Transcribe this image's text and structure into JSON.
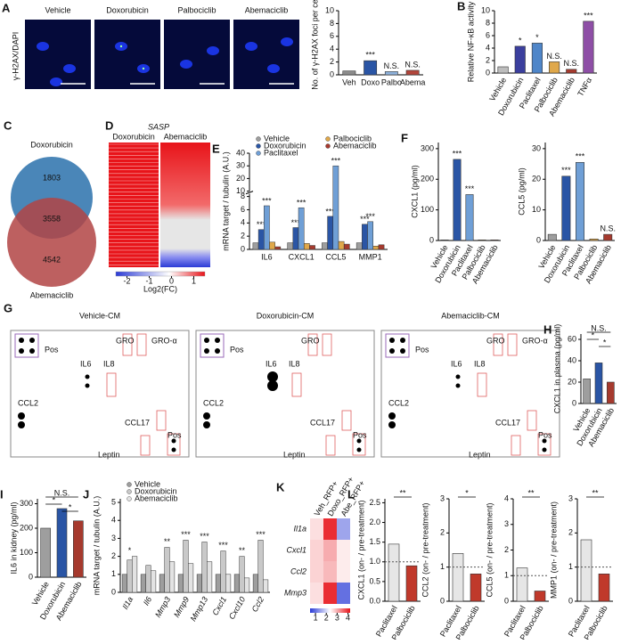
{
  "chart_data": [
    {
      "panel": "A",
      "type": "image",
      "channel_label": "γ-H2AX/DAPI",
      "titles": [
        "Vehicle",
        "Doxorubicin",
        "Palbociclib",
        "Abemaciclib"
      ]
    },
    {
      "type": "bar",
      "ylabel": "No. of γ-H2AX foci per cell",
      "categories": [
        "Veh",
        "Doxo",
        "Palbo",
        "Abema"
      ],
      "values": [
        0.6,
        2.2,
        0.5,
        0.7
      ],
      "colors": [
        "#8c8c8c",
        "#2a55a5",
        "#8fb3dd",
        "#b2453b"
      ],
      "ylim": [
        0,
        10
      ],
      "yticks": [
        0,
        2,
        4,
        6,
        8,
        10
      ],
      "annotations": [
        null,
        "***",
        "N.S.",
        "N.S."
      ]
    },
    {
      "panel": "B",
      "type": "bar",
      "ylabel": "Relative NF-κB activity",
      "categories": [
        "Vehicle",
        "Doxorubicin",
        "Paclitaxel",
        "Palbociclib",
        "Abemaciclib",
        "TNFα"
      ],
      "values": [
        1,
        4.3,
        4.8,
        1.8,
        0.6,
        8.3
      ],
      "colors": [
        "#bdbdbd",
        "#3b3f9e",
        "#4f86c9",
        "#e0a84a",
        "#a63a2e",
        "#8e4fa6"
      ],
      "ylim": [
        0,
        10
      ],
      "yticks": [
        0,
        2,
        4,
        6,
        8,
        10
      ],
      "annotations": [
        null,
        "*",
        "*",
        "N.S.",
        "N.S.",
        "***"
      ]
    },
    {
      "panel": "C",
      "type": "venn",
      "sets": [
        "Doxorubicin",
        "Abemaciclib"
      ],
      "counts": [
        1803,
        3558,
        4542
      ]
    },
    {
      "panel": "D",
      "type": "heatmap-image",
      "title": "SASP",
      "columns": [
        "Doxorubicin",
        "Abemaciclib"
      ],
      "colorbar_lim": [
        -2.5,
        1.5
      ],
      "colorbar_ticks": [
        -2,
        -1,
        0,
        1
      ],
      "colorbar_label": "Log2(FC)"
    },
    {
      "panel": "E",
      "type": "bar",
      "ylabel": "mRNA target / tubulin (A.U.)",
      "categories": [
        "IL6",
        "CXCL1",
        "CCL5",
        "MMP1"
      ],
      "series": [
        {
          "name": "Vehicle",
          "color": "#9e9e9e",
          "values": [
            1,
            1,
            1,
            1
          ]
        },
        {
          "name": "Doxorubicin",
          "color": "#2a55a5",
          "values": [
            3.0,
            3.3,
            5.0,
            3.8
          ],
          "annotations": [
            "***",
            "***",
            "***",
            "***"
          ]
        },
        {
          "name": "Paclitaxel",
          "color": "#6f9fd6",
          "values": [
            6.6,
            6.3,
            30,
            4.2
          ],
          "annotations": [
            "***",
            "***",
            "***",
            "***"
          ]
        },
        {
          "name": "Palbociclib",
          "color": "#e0a84a",
          "values": [
            1.1,
            0.9,
            1.2,
            0.5
          ]
        },
        {
          "name": "Abemaciclib",
          "color": "#a63a2e",
          "values": [
            0.4,
            0.6,
            0.8,
            0.7
          ]
        }
      ],
      "ylim": [
        0,
        40
      ],
      "ybreak": [
        8,
        10
      ],
      "yticks": [
        0,
        2,
        4,
        6,
        8,
        10,
        20,
        30,
        40
      ]
    },
    {
      "panel": "F",
      "type": "bar",
      "ylabel": "CXCL1 (pg/ml)",
      "categories": [
        "Vehicle",
        "Doxorubicin",
        "Paclitaxel",
        "Palbociclib",
        "Abemaciclib"
      ],
      "values": [
        2,
        265,
        150,
        2,
        2
      ],
      "colors": [
        "#9e9e9e",
        "#2a55a5",
        "#6f9fd6",
        "#e0a84a",
        "#a63a2e"
      ],
      "ylim": [
        0,
        320
      ],
      "yticks": [
        0,
        100,
        200,
        300
      ],
      "annotations": [
        null,
        "***",
        "***",
        null,
        null
      ]
    },
    {
      "type": "bar",
      "ylabel": "CCL5 (pg/ml)",
      "categories": [
        "Vehicle",
        "Doxorubicin",
        "Paclitaxel",
        "Palbociclib",
        "Abemaciclib"
      ],
      "values": [
        2,
        21,
        25.5,
        0.5,
        2
      ],
      "colors": [
        "#9e9e9e",
        "#2a55a5",
        "#6f9fd6",
        "#e0a84a",
        "#a63a2e"
      ],
      "ylim": [
        0,
        32
      ],
      "yticks": [
        0,
        10,
        20,
        30
      ],
      "annotations": [
        null,
        "***",
        "***",
        null,
        "N.S."
      ]
    },
    {
      "panel": "G",
      "type": "array",
      "arrays": [
        {
          "title": "Vehicle-CM",
          "labels": [
            "Pos",
            "GRO",
            "GRO-α",
            "IL6",
            "IL8",
            "CCL2",
            "CCL17",
            "Pos",
            "Leptin"
          ]
        },
        {
          "title": "Doxorubicin-CM",
          "labels": [
            "Pos",
            "GRO",
            "IL6",
            "IL8",
            "CCL2",
            "CCL17",
            "Pos",
            "Leptin"
          ]
        },
        {
          "title": "Abemaciclib-CM",
          "labels": [
            "Pos",
            "GRO",
            "GRO-α",
            "IL6",
            "IL8",
            "CCL2",
            "CCL17",
            "Pos",
            "Leptin"
          ]
        }
      ]
    },
    {
      "panel": "H",
      "type": "bar",
      "ylabel": "CXCL1 in plasma (pg/ml)",
      "categories": [
        "Vehicle",
        "Doxorubicin",
        "Abemaciclib"
      ],
      "values": [
        23,
        38,
        20
      ],
      "colors": [
        "#9e9e9e",
        "#2a55a5",
        "#a63a2e"
      ],
      "ylim": [
        0,
        65
      ],
      "yticks": [
        0,
        20,
        40,
        60
      ],
      "comparisons": [
        {
          "label": "N.S.",
          "groups": [
            "Vehicle",
            "Abemaciclib"
          ]
        },
        {
          "label": "*",
          "groups": [
            "Vehicle",
            "Doxorubicin"
          ]
        },
        {
          "label": "*",
          "groups": [
            "Doxorubicin",
            "Abemaciclib"
          ]
        }
      ]
    },
    {
      "panel": "I",
      "type": "bar",
      "ylabel": "IL6 in kidney (pg/ml)",
      "categories": [
        "Vehicle",
        "Doxorubicin",
        "Abemaciclib"
      ],
      "values": [
        200,
        280,
        230
      ],
      "colors": [
        "#9e9e9e",
        "#2a55a5",
        "#a63a2e"
      ],
      "ylim": [
        0,
        320
      ],
      "yticks": [
        0,
        100,
        200,
        300
      ],
      "comparisons": [
        {
          "label": "N.S.",
          "groups": [
            "Vehicle",
            "Abemaciclib"
          ]
        },
        {
          "label": "*",
          "groups": [
            "Vehicle",
            "Doxorubicin"
          ]
        },
        {
          "label": "*",
          "groups": [
            "Doxorubicin",
            "Abemaciclib"
          ]
        }
      ]
    },
    {
      "panel": "J",
      "type": "bar",
      "ylabel": "mRNA target / tubulin (A.U.)",
      "categories": [
        "Il1a",
        "Il6",
        "Mmp3",
        "Mmp9",
        "Mmp13",
        "Cxcl1",
        "Cxcl10",
        "Ccl2"
      ],
      "series": [
        {
          "name": "Vehicle",
          "color": "#9e9e9e",
          "values": [
            1,
            1,
            1,
            1,
            1,
            1,
            1,
            1
          ]
        },
        {
          "name": "Doxorubicin",
          "color": "#c9c9c9",
          "values": [
            1.8,
            1.5,
            2.5,
            2.9,
            2.8,
            2.3,
            2.0,
            2.9
          ]
        },
        {
          "name": "Abemaciclib",
          "color": "#e3e3e3",
          "values": [
            2.0,
            1.2,
            1.7,
            1.6,
            1.7,
            1.0,
            0.8,
            0.7
          ]
        }
      ],
      "ylim": [
        0,
        5.2
      ],
      "yticks": [
        0,
        1,
        2,
        3,
        4,
        5
      ],
      "annotations": [
        "*",
        null,
        "**",
        "***",
        "***",
        "***",
        "**",
        "***"
      ]
    },
    {
      "panel": "K",
      "type": "heatmap",
      "columns": [
        "Veh_RFP+",
        "Doxo_RFP+",
        "Abe_RFP+"
      ],
      "rows": [
        "Il1a",
        "Cxcl1",
        "Ccl2",
        "Mmp3"
      ],
      "values": [
        [
          2.6,
          4.0,
          1.5
        ],
        [
          2.7,
          3.0,
          2.5
        ],
        [
          2.7,
          2.9,
          2.5
        ],
        [
          2.6,
          4.0,
          1.0
        ]
      ],
      "zlim": [
        0.5,
        4.2
      ],
      "zticks": [
        1,
        2,
        3,
        4
      ]
    },
    {
      "panel": "L",
      "type": "bar",
      "ylabel": "CXCL1 (on- / pre-treatment)",
      "categories": [
        "Paclitaxel",
        "Palbociclib"
      ],
      "values": [
        1.45,
        0.9
      ],
      "colors": [
        "#e6e6e6",
        "#c0392b"
      ],
      "ylim": [
        0,
        2.6
      ],
      "yticks": [
        {
          "value": 0,
          "label": "0.0"
        },
        0.5,
        {
          "value": 1,
          "label": "1.0"
        },
        1.5,
        {
          "value": 2,
          "label": "2.0"
        },
        2.5
      ],
      "hline": 1,
      "comparisons": [
        {
          "label": "**",
          "groups": [
            "Paclitaxel",
            "Palbociclib"
          ]
        }
      ]
    },
    {
      "type": "bar",
      "ylabel": "CCL2 (on- / pre-treatment)",
      "categories": [
        "Paclitaxel",
        "Palbociclib"
      ],
      "values": [
        1.4,
        0.8
      ],
      "colors": [
        "#e6e6e6",
        "#c0392b"
      ],
      "ylim": [
        0,
        3
      ],
      "yticks": [
        0,
        1,
        2,
        3
      ],
      "hline": 1,
      "comparisons": [
        {
          "label": "*",
          "groups": [
            "Paclitaxel",
            "Palbociclib"
          ]
        }
      ]
    },
    {
      "type": "bar",
      "ylabel": "CCL5 (on- / pre-treatment)",
      "categories": [
        "Paclitaxel",
        "Palbociclib"
      ],
      "values": [
        1.3,
        0.4
      ],
      "colors": [
        "#e6e6e6",
        "#c0392b"
      ],
      "ylim": [
        0,
        4
      ],
      "yticks": [
        0,
        1,
        2,
        3,
        4
      ],
      "hline": 1,
      "comparisons": [
        {
          "label": "**",
          "groups": [
            "Paclitaxel",
            "Palbociclib"
          ]
        }
      ]
    },
    {
      "type": "bar",
      "ylabel": "MMP1 (on- / pre-treatment)",
      "categories": [
        "Paclitaxel",
        "Palbociclib"
      ],
      "values": [
        1.8,
        0.8
      ],
      "colors": [
        "#e6e6e6",
        "#c0392b"
      ],
      "ylim": [
        0,
        3
      ],
      "yticks": [
        0,
        1,
        2,
        3
      ],
      "hline": 1,
      "comparisons": [
        {
          "label": "**",
          "groups": [
            "Paclitaxel",
            "Palbociclib"
          ]
        }
      ]
    }
  ]
}
